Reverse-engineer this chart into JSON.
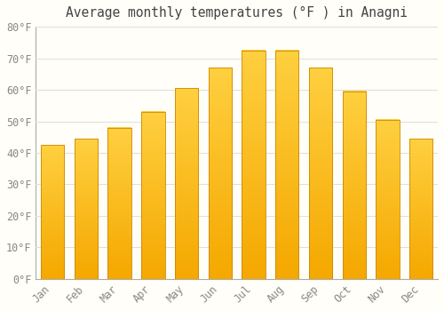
{
  "title": "Average monthly temperatures (°F ) in Anagni",
  "months": [
    "Jan",
    "Feb",
    "Mar",
    "Apr",
    "May",
    "Jun",
    "Jul",
    "Aug",
    "Sep",
    "Oct",
    "Nov",
    "Dec"
  ],
  "values": [
    42.5,
    44.5,
    48,
    53,
    60.5,
    67,
    72.5,
    72.5,
    67,
    59.5,
    50.5,
    44.5
  ],
  "bar_color_bottom": "#F5A800",
  "bar_color_top": "#FFD040",
  "bar_edge_color": "#CC8800",
  "background_color": "#FFFEF8",
  "grid_color": "#DDDDDD",
  "tick_color": "#888888",
  "title_color": "#444444",
  "ylim": [
    0,
    80
  ],
  "yticks": [
    0,
    10,
    20,
    30,
    40,
    50,
    60,
    70,
    80
  ],
  "title_fontsize": 10.5,
  "tick_fontsize": 8.5,
  "bar_width": 0.7
}
